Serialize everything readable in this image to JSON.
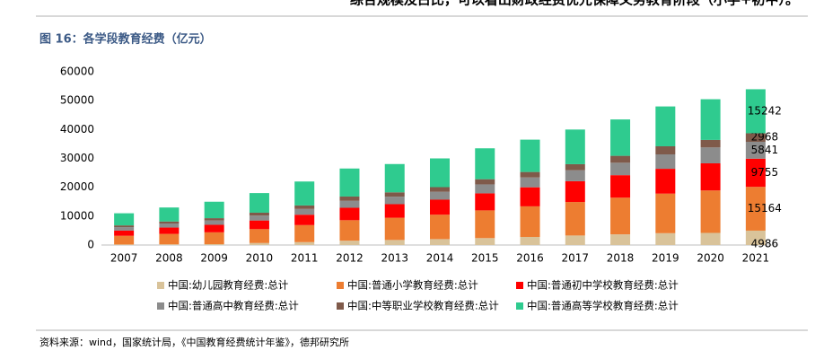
{
  "header": {
    "text": "综合规模及占比，可以看出财政经费优先保障义务教育阶段（小学+初中）。"
  },
  "chart_data": {
    "type": "stacked_bar",
    "title": "图 16：各学段教育经费（亿元）",
    "categories": [
      "2007",
      "2008",
      "2009",
      "2010",
      "2011",
      "2012",
      "2013",
      "2014",
      "2015",
      "2016",
      "2017",
      "2018",
      "2019",
      "2020",
      "2021"
    ],
    "series": [
      {
        "name": "中国:幼儿园教育经费:总计",
        "color": "#d9c39a",
        "values": [
          200,
          250,
          300,
          700,
          1000,
          1500,
          1750,
          2050,
          2400,
          2800,
          3300,
          3700,
          4100,
          4200,
          4986
        ]
      },
      {
        "name": "中国:普通小学教育经费:总计",
        "color": "#ed7d31",
        "values": [
          3000,
          3600,
          4100,
          4800,
          5900,
          7100,
          7700,
          8450,
          9600,
          10600,
          11600,
          12700,
          13700,
          14700,
          15164
        ]
      },
      {
        "name": "中国:普通初中学校教育经费:总计",
        "color": "#ff0000",
        "values": [
          1800,
          2200,
          2600,
          3000,
          3600,
          4300,
          4700,
          5200,
          5900,
          6600,
          7200,
          7800,
          8600,
          9400,
          9755
        ]
      },
      {
        "name": "中国:普通高中教育经费:总计",
        "color": "#8c8c8c",
        "values": [
          1200,
          1400,
          1500,
          1700,
          2000,
          2400,
          2600,
          2750,
          3100,
          3400,
          3800,
          4300,
          5000,
          5500,
          5841
        ]
      },
      {
        "name": "中国:中等职业学校教育经费:总计",
        "color": "#7f5a4a",
        "values": [
          600,
          700,
          800,
          1000,
          1200,
          1500,
          1500,
          1600,
          1800,
          1900,
          2100,
          2400,
          2800,
          2600,
          2968
        ]
      },
      {
        "name": "中国:普通高等学校教育经费:总计",
        "color": "#2fcb8f",
        "values": [
          4200,
          4850,
          5700,
          6800,
          8300,
          9700,
          9800,
          9950,
          10700,
          11200,
          12000,
          12600,
          13800,
          14100,
          15242
        ]
      }
    ],
    "ylim": [
      0,
      60000
    ],
    "yticks": [
      0,
      10000,
      20000,
      30000,
      40000,
      50000,
      60000
    ],
    "grid": false,
    "source": "资料来源：wind，国家统计局，《中国教育经费统计年鉴》，德邦研究所"
  }
}
